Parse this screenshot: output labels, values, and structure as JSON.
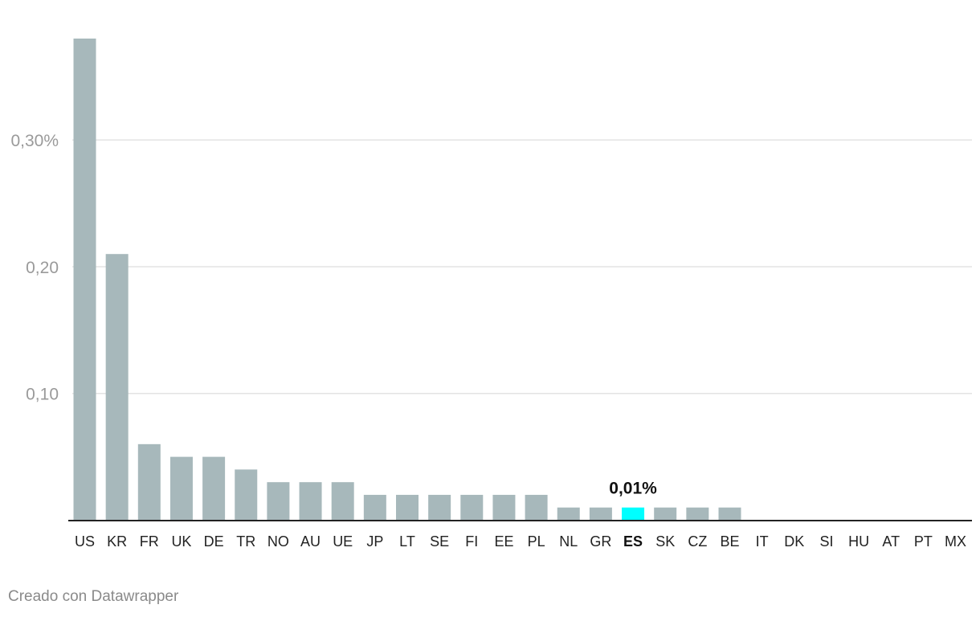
{
  "chart_data": {
    "type": "bar",
    "title": "",
    "xlabel": "",
    "ylabel": "",
    "unit": "%",
    "categories": [
      "US",
      "KR",
      "FR",
      "UK",
      "DE",
      "TR",
      "NO",
      "AU",
      "UE",
      "JP",
      "LT",
      "SE",
      "FI",
      "EE",
      "PL",
      "NL",
      "GR",
      "ES",
      "SK",
      "CZ",
      "BE",
      "IT",
      "DK",
      "SI",
      "HU",
      "AT",
      "PT",
      "MX"
    ],
    "values": [
      0.38,
      0.21,
      0.06,
      0.05,
      0.05,
      0.04,
      0.03,
      0.03,
      0.03,
      0.02,
      0.02,
      0.02,
      0.02,
      0.02,
      0.02,
      0.01,
      0.01,
      0.01,
      0.01,
      0.01,
      0.01,
      0,
      0,
      0,
      0,
      0,
      0,
      0
    ],
    "ylim": [
      0,
      0.38
    ],
    "yticks": [
      {
        "value": 0.1,
        "label": "0,10"
      },
      {
        "value": 0.2,
        "label": "0,20"
      },
      {
        "value": 0.3,
        "label": "0,30%"
      }
    ],
    "grid": true,
    "highlight": {
      "category": "ES",
      "label": "0,01%"
    },
    "colors": {
      "bar": "#a7b8bb",
      "highlight": "#00ffff",
      "grid": "#e3e3e3",
      "baseline": "#222222"
    }
  },
  "footer": {
    "credit": "Creado con Datawrapper"
  }
}
